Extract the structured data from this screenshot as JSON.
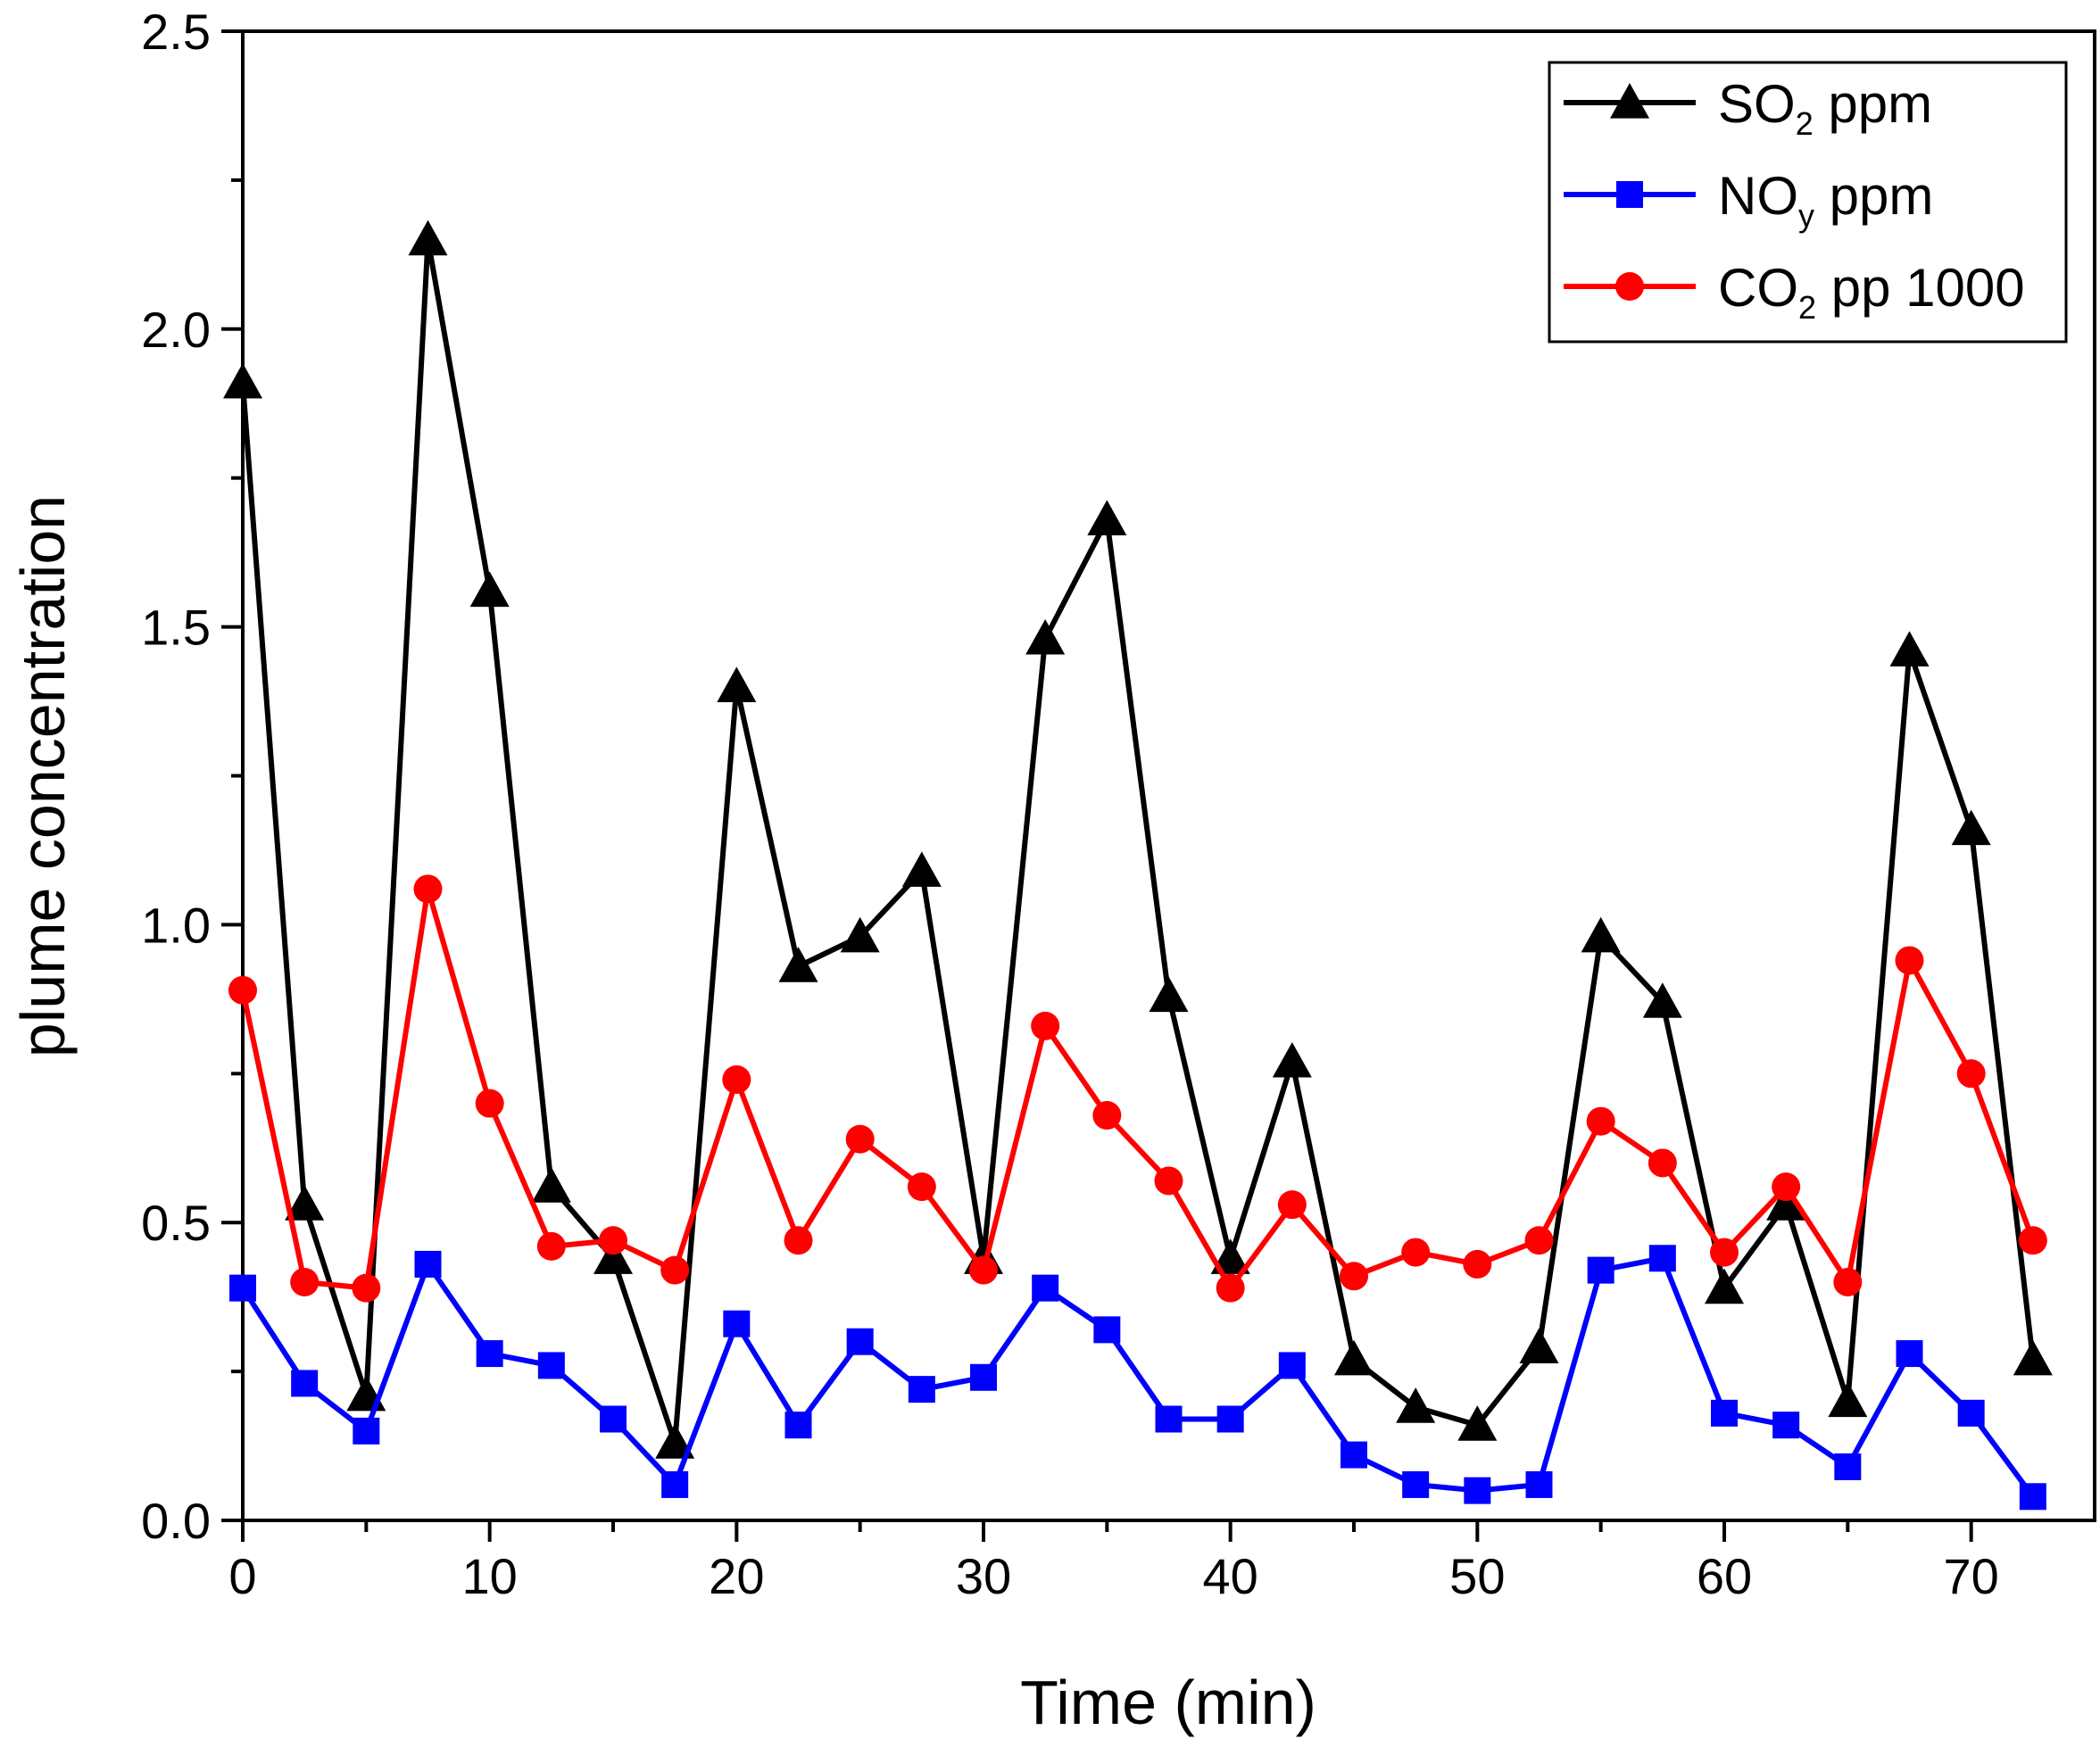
{
  "chart_data": {
    "type": "line",
    "xlabel": "Time (min)",
    "ylabel": "plume concentration",
    "xlim": [
      0,
      75
    ],
    "ylim": [
      0,
      2.5
    ],
    "xticks": [
      "0",
      "10",
      "20",
      "30",
      "40",
      "50",
      "60",
      "70"
    ],
    "yticks": [
      "0.0",
      "0.5",
      "1.0",
      "1.5",
      "2.0",
      "2.5"
    ],
    "x": [
      0,
      2.5,
      5,
      7.5,
      10,
      12.5,
      15,
      17.5,
      20,
      22.5,
      25,
      27.5,
      30,
      32.5,
      35,
      37.5,
      40,
      42.5,
      45,
      47.5,
      50,
      52.5,
      55,
      57.5,
      60,
      62.5,
      65,
      67.5,
      70,
      72.5
    ],
    "legend_position": "top-right",
    "grid": false,
    "series": [
      {
        "name": "SO2 ppm",
        "legend": {
          "main": "SO",
          "sub": "2",
          "rest": " ppm"
        },
        "color": "#000000",
        "marker": "triangle",
        "values": [
          1.91,
          0.53,
          0.21,
          2.15,
          1.56,
          0.56,
          0.44,
          0.13,
          1.4,
          0.93,
          0.98,
          1.09,
          0.44,
          1.48,
          1.68,
          0.88,
          0.44,
          0.77,
          0.27,
          0.19,
          0.16,
          0.29,
          0.98,
          0.87,
          0.39,
          0.53,
          0.2,
          1.46,
          1.16,
          0.27
        ]
      },
      {
        "name": "NOy ppm",
        "legend": {
          "main": "NO",
          "sub": "y",
          "rest": " ppm"
        },
        "color": "#0000ff",
        "marker": "square",
        "values": [
          0.39,
          0.23,
          0.15,
          0.43,
          0.28,
          0.26,
          0.17,
          0.06,
          0.33,
          0.16,
          0.3,
          0.22,
          0.24,
          0.39,
          0.32,
          0.17,
          0.17,
          0.26,
          0.11,
          0.06,
          0.05,
          0.06,
          0.42,
          0.44,
          0.18,
          0.16,
          0.09,
          0.28,
          0.18,
          0.04
        ]
      },
      {
        "name": "CO2 pp 1000",
        "legend": {
          "main": "CO",
          "sub": "2",
          "rest": " pp 1000"
        },
        "color": "#ff0000",
        "marker": "circle",
        "values": [
          0.89,
          0.4,
          0.39,
          1.06,
          0.7,
          0.46,
          0.47,
          0.42,
          0.74,
          0.47,
          0.64,
          0.56,
          0.42,
          0.83,
          0.68,
          0.57,
          0.39,
          0.53,
          0.41,
          0.45,
          0.43,
          0.47,
          0.67,
          0.6,
          0.45,
          0.56,
          0.4,
          0.94,
          0.75,
          0.47
        ]
      }
    ]
  }
}
